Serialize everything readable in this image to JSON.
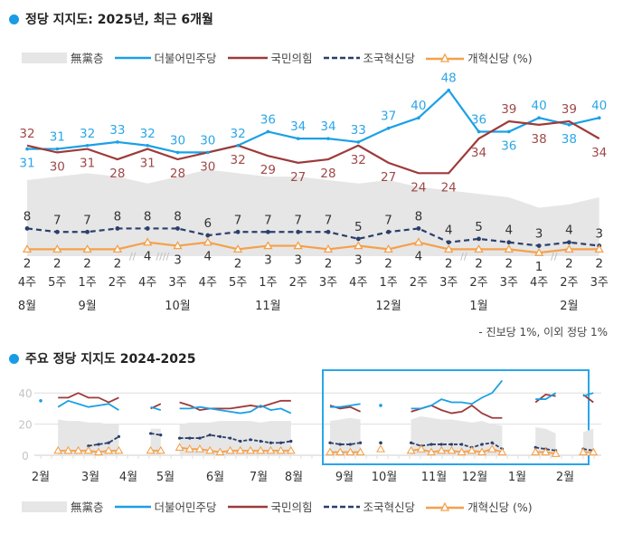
{
  "colors": {
    "minjoo": "#1aa0e6",
    "ppp": "#9e3a3a",
    "rebuild": "#2b3f6b",
    "reform": "#f5a04a",
    "undecided": "#e6e6e6",
    "accent": "#1a9be6"
  },
  "legend": {
    "undecided": "無黨층",
    "minjoo": "더불어민주당",
    "ppp": "국민의힘",
    "rebuild": "조국혁신당",
    "reform": "개혁신당 (%)"
  },
  "note": "- 진보당 1%, 이외 정당 1%",
  "chart_data": [
    {
      "type": "line",
      "title": "정당 지지도: 2025년, 최근 6개월",
      "categories": [
        "4주",
        "5주",
        "1주",
        "2주",
        "4주",
        "3주",
        "4주",
        "5주",
        "1주",
        "2주",
        "3주",
        "4주",
        "1주",
        "2주",
        "3주",
        "2주",
        "3주",
        "4주",
        "2주",
        "3주"
      ],
      "month_labels": [
        {
          "label": "8월",
          "at": 0
        },
        {
          "label": "9월",
          "at": 2
        },
        {
          "label": "10월",
          "at": 5
        },
        {
          "label": "11월",
          "at": 8
        },
        {
          "label": "12월",
          "at": 12
        },
        {
          "label": "1월",
          "at": 15
        },
        {
          "label": "2월",
          "at": 18
        }
      ],
      "axis_breaks_after": [
        3,
        4,
        14,
        17
      ],
      "series": [
        {
          "name": "無黨층",
          "key": "undecided",
          "type": "area",
          "approximate": true,
          "values": [
            22,
            23,
            24,
            23,
            21,
            23,
            25,
            24,
            23,
            23,
            22,
            21,
            22,
            20,
            19,
            18,
            17,
            14,
            15,
            17
          ]
        },
        {
          "name": "더불어민주당",
          "key": "minjoo",
          "values": [
            31,
            31,
            32,
            33,
            32,
            30,
            30,
            32,
            36,
            34,
            34,
            33,
            37,
            40,
            48,
            36,
            36,
            40,
            38,
            40
          ]
        },
        {
          "name": "국민의힘",
          "key": "ppp",
          "values": [
            32,
            30,
            31,
            28,
            31,
            28,
            30,
            32,
            29,
            27,
            28,
            32,
            27,
            24,
            24,
            34,
            39,
            38,
            39,
            34
          ]
        },
        {
          "name": "조국혁신당",
          "key": "rebuild",
          "values": [
            8,
            7,
            7,
            8,
            8,
            8,
            6,
            7,
            7,
            7,
            7,
            5,
            7,
            8,
            4,
            5,
            4,
            3,
            4,
            3
          ]
        },
        {
          "name": "개혁신당",
          "key": "reform",
          "values": [
            2,
            2,
            2,
            2,
            4,
            3,
            4,
            2,
            3,
            3,
            2,
            3,
            2,
            4,
            2,
            2,
            2,
            1,
            2,
            2
          ]
        }
      ],
      "unit": "%"
    },
    {
      "type": "line",
      "title": "주요 정당 지지도 2024-2025",
      "y_ticks": [
        "0",
        "20",
        "40"
      ],
      "ylim": [
        0,
        40
      ],
      "grid": true,
      "x_ticks": [
        "2월",
        "3월",
        "4월",
        "5월",
        "6월",
        "7월",
        "8월",
        "9월",
        "10월",
        "11월",
        "12월",
        "1월",
        "2월"
      ],
      "highlight_box": "최근 6개월 (8월~2월)",
      "segments": [
        {
          "dates": [
            "2024-02-01"
          ],
          "minjoo": [
            35
          ],
          "ppp": [
            null
          ],
          "rebuild": [
            null
          ],
          "reform": [
            null
          ],
          "undecided": [
            null
          ]
        },
        {
          "dates": [
            "2024-02-13",
            "2024-02-20",
            "2024-02-27",
            "2024-03-05",
            "2024-03-12",
            "2024-03-19",
            "2024-03-26"
          ],
          "minjoo": [
            31,
            35,
            33,
            31,
            32,
            33,
            29
          ],
          "ppp": [
            37,
            37,
            40,
            37,
            37,
            34,
            37
          ],
          "rebuild": [
            null,
            null,
            null,
            6,
            7,
            8,
            12
          ],
          "reform": [
            3,
            3,
            3,
            3,
            2,
            3,
            3
          ],
          "undecided": [
            23,
            22,
            22,
            21,
            21,
            20,
            20
          ]
        },
        {
          "dates": [
            "2024-04-17",
            "2024-04-24"
          ],
          "minjoo": [
            31,
            29
          ],
          "ppp": [
            30,
            33
          ],
          "rebuild": [
            14,
            13
          ],
          "reform": [
            3,
            3
          ],
          "undecided": [
            17,
            17
          ]
        },
        {
          "dates": [
            "2024-05-07",
            "2024-05-14",
            "2024-05-21",
            "2024-05-28",
            "2024-06-04",
            "2024-06-11",
            "2024-06-18",
            "2024-06-25",
            "2024-07-02",
            "2024-07-09",
            "2024-07-16",
            "2024-07-23"
          ],
          "minjoo": [
            30,
            30,
            31,
            30,
            29,
            28,
            27,
            28,
            32,
            29,
            30,
            27
          ],
          "ppp": [
            34,
            32,
            29,
            30,
            30,
            30,
            31,
            32,
            31,
            33,
            35,
            35
          ],
          "rebuild": [
            11,
            11,
            11,
            13,
            12,
            11,
            9,
            10,
            9,
            8,
            8,
            9
          ],
          "reform": [
            5,
            4,
            4,
            3,
            2,
            3,
            3,
            3,
            3,
            3,
            3,
            3
          ],
          "undecided": [
            20,
            21,
            21,
            21,
            22,
            22,
            22,
            22,
            21,
            22,
            22,
            22
          ]
        },
        {
          "dates": [
            "2024-08-19",
            "2024-08-26",
            "2024-09-02",
            "2024-09-09"
          ],
          "minjoo": [
            31,
            31,
            32,
            33
          ],
          "ppp": [
            32,
            30,
            31,
            28
          ],
          "rebuild": [
            8,
            7,
            7,
            8
          ],
          "reform": [
            2,
            2,
            2,
            2
          ],
          "undecided": [
            22,
            23,
            24,
            23
          ]
        },
        {
          "dates": [
            "2024-09-23"
          ],
          "minjoo": [
            32
          ],
          "ppp": [
            null
          ],
          "rebuild": [
            8
          ],
          "reform": [
            4
          ],
          "undecided": [
            null
          ]
        },
        {
          "dates": [
            "2024-10-14",
            "2024-10-21",
            "2024-10-28",
            "2024-11-04",
            "2024-11-11",
            "2024-11-18",
            "2024-11-25",
            "2024-12-02",
            "2024-12-09",
            "2024-12-16"
          ],
          "minjoo": [
            30,
            30,
            32,
            36,
            34,
            34,
            33,
            37,
            40,
            48
          ],
          "ppp": [
            28,
            30,
            32,
            29,
            27,
            28,
            32,
            27,
            24,
            24
          ],
          "rebuild": [
            8,
            6,
            7,
            7,
            7,
            7,
            5,
            7,
            8,
            4
          ],
          "reform": [
            3,
            4,
            2,
            3,
            3,
            2,
            3,
            2,
            4,
            2
          ],
          "undecided": [
            23,
            25,
            24,
            23,
            23,
            22,
            21,
            22,
            20,
            19
          ]
        },
        {
          "dates": [
            "2025-01-08",
            "2025-01-15",
            "2025-01-22"
          ],
          "minjoo": [
            36,
            36,
            40
          ],
          "ppp": [
            34,
            39,
            38
          ],
          "rebuild": [
            5,
            4,
            3
          ],
          "reform": [
            2,
            2,
            1
          ],
          "undecided": [
            18,
            17,
            14
          ]
        },
        {
          "dates": [
            "2025-02-10",
            "2025-02-17"
          ],
          "minjoo": [
            38,
            40
          ],
          "ppp": [
            39,
            34
          ],
          "rebuild": [
            4,
            3
          ],
          "reform": [
            2,
            2
          ],
          "undecided": [
            15,
            17
          ]
        }
      ]
    }
  ]
}
